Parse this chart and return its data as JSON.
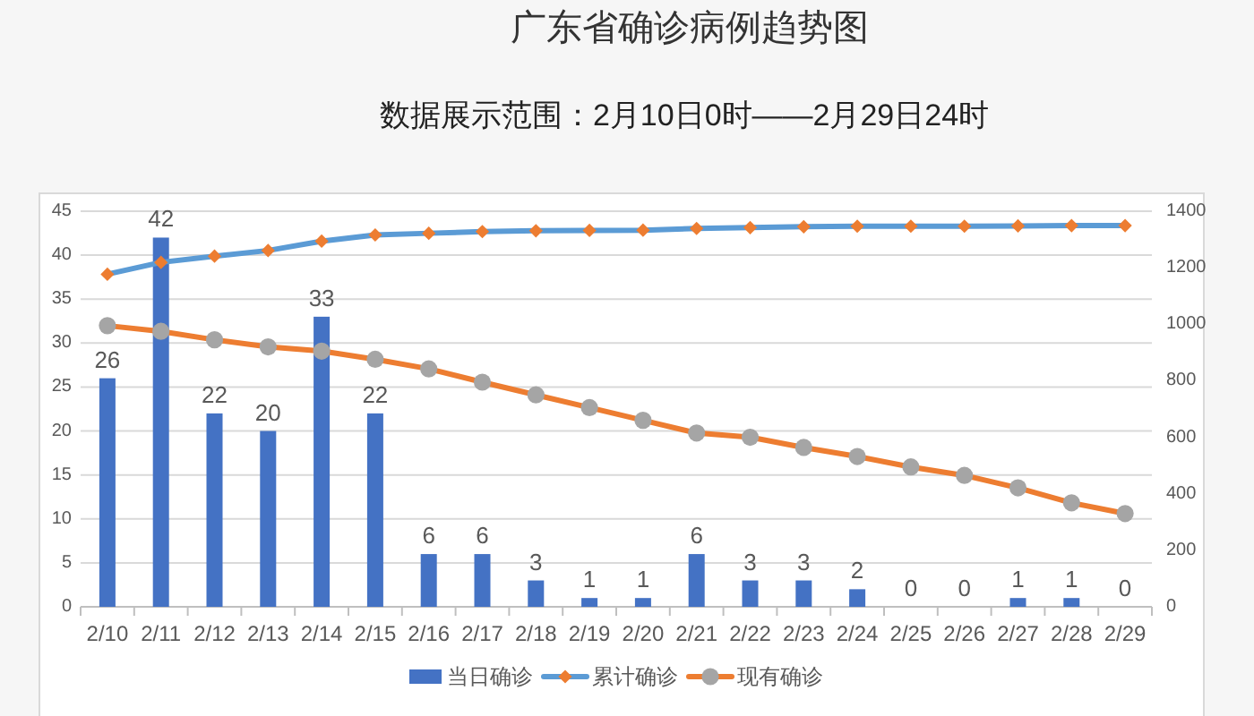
{
  "chart_data": {
    "type": "bar",
    "title": "广东省确诊病例趋势图",
    "subtitle": "数据展示范围：2月10日0时——2月29日24时",
    "categories": [
      "2/10",
      "2/11",
      "2/12",
      "2/13",
      "2/14",
      "2/15",
      "2/16",
      "2/17",
      "2/18",
      "2/19",
      "2/20",
      "2/21",
      "2/22",
      "2/23",
      "2/24",
      "2/25",
      "2/26",
      "2/27",
      "2/28",
      "2/29"
    ],
    "series": [
      {
        "name": "当日确诊",
        "color": "#4472c4",
        "values": [
          26,
          42,
          22,
          20,
          33,
          22,
          6,
          6,
          3,
          1,
          1,
          6,
          3,
          3,
          2,
          0,
          0,
          1,
          1,
          0
        ],
        "value_labels": [
          "26",
          "42",
          "22",
          "20",
          "33",
          "22",
          "6",
          "6",
          "3",
          "1",
          "1",
          "6",
          "3",
          "3",
          "2",
          "0",
          "0",
          "1",
          "1",
          "0"
        ]
      },
      {
        "name": "累计确诊",
        "type": "line",
        "axis": "y2",
        "marker": "diamond",
        "color": "#5b9bd5",
        "colors": [
          "#ed7d31",
          "#ed7d31",
          "#ed7d31",
          "#ed7d31",
          "#ed7d31",
          "#ed7d31",
          "#ed7d31",
          "#ed7d31",
          "#ed7d31",
          "#ed7d31",
          "#ed7d31",
          "#ed7d31",
          "#ed7d31",
          "#ed7d31",
          "#ed7d31",
          "#ed7d31",
          "#ed7d31",
          "#ed7d31",
          "#ed7d31",
          "#ed7d31"
        ],
        "values": [
          1177,
          1219,
          1241,
          1261,
          1294,
          1316,
          1322,
          1328,
          1331,
          1332,
          1333,
          1339,
          1342,
          1345,
          1347,
          1347,
          1347,
          1348,
          1349,
          1349
        ]
      },
      {
        "name": "现有确诊",
        "type": "line",
        "axis": "y2",
        "marker": "circle",
        "color": "#ed7d31",
        "colors": [
          "#a5a5a5",
          "#a5a5a5",
          "#a5a5a5",
          "#a5a5a5",
          "#a5a5a5",
          "#a5a5a5",
          "#a5a5a5",
          "#a5a5a5",
          "#a5a5a5",
          "#a5a5a5",
          "#a5a5a5",
          "#a5a5a5",
          "#a5a5a5",
          "#a5a5a5",
          "#a5a5a5",
          "#a5a5a5",
          "#a5a5a5",
          "#a5a5a5",
          "#a5a5a5",
          "#a5a5a5"
        ],
        "values": [
          995,
          975,
          945,
          920,
          905,
          876,
          842,
          795,
          750,
          705,
          660,
          615,
          600,
          564,
          532,
          495,
          465,
          421,
          368,
          330
        ]
      }
    ],
    "ylim": [
      0,
      45
    ],
    "yticks": [
      0,
      5,
      10,
      15,
      20,
      25,
      30,
      35,
      40,
      45
    ],
    "y2lim": [
      0,
      1400
    ],
    "y2ticks": [
      0,
      200,
      400,
      600,
      800,
      1000,
      1200,
      1400
    ],
    "grid": "y",
    "legend": "bottom",
    "line_style": "solid"
  }
}
